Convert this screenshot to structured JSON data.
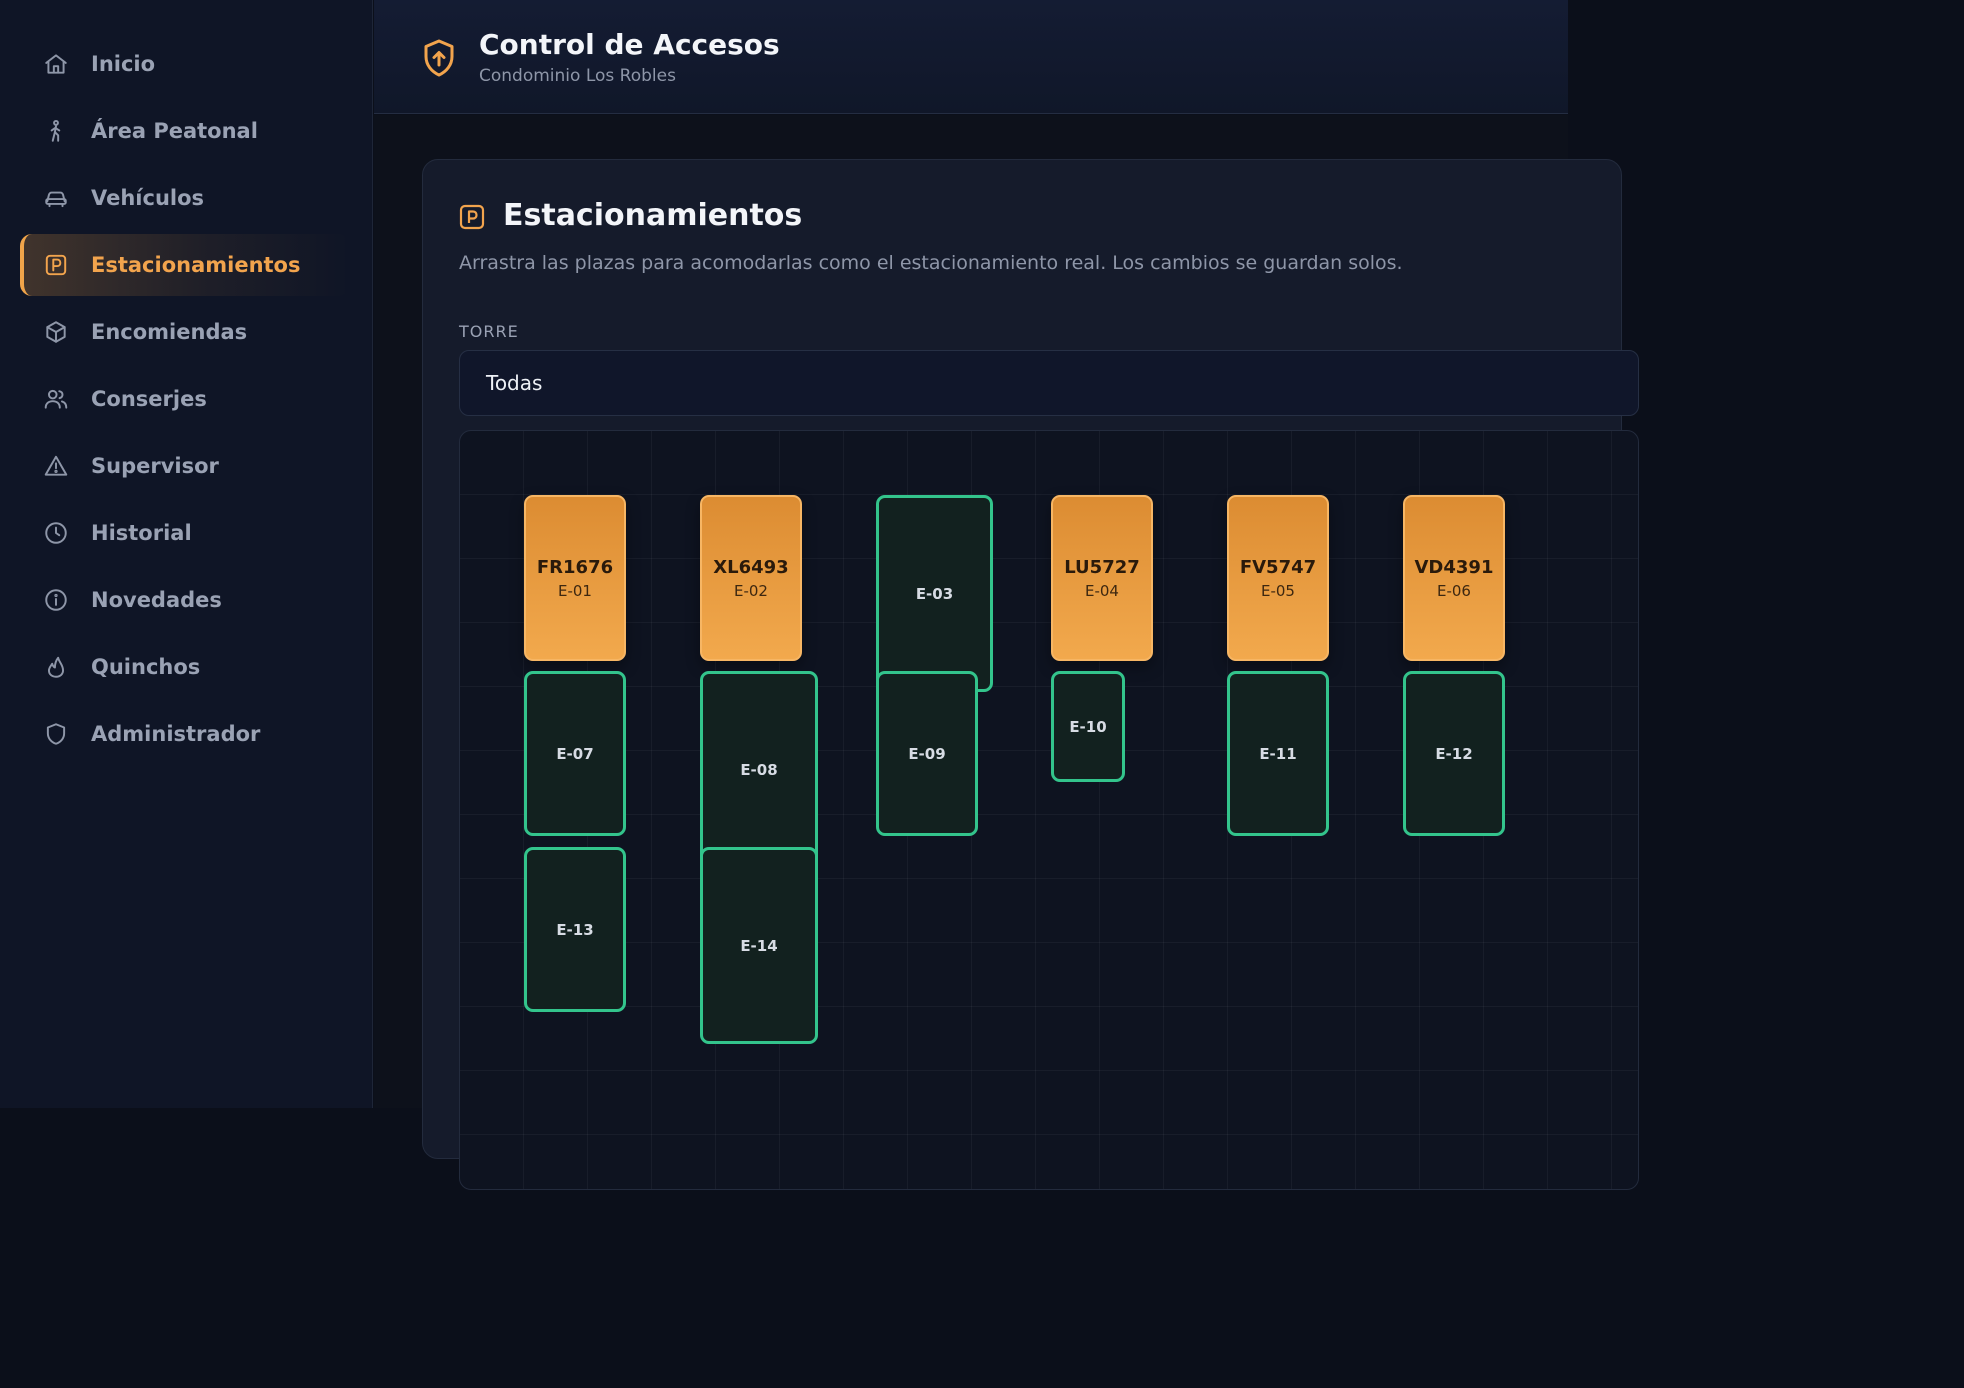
{
  "header": {
    "title": "Control de Accesos",
    "subtitle": "Condominio Los Robles",
    "logo_icon": "shield-arrow-icon"
  },
  "sidebar": {
    "items": [
      {
        "label": "Inicio",
        "icon": "home-icon"
      },
      {
        "label": "Área Peatonal",
        "icon": "walking-icon"
      },
      {
        "label": "Vehículos",
        "icon": "car-icon"
      },
      {
        "label": "Estacionamientos",
        "icon": "parking-icon",
        "active": true
      },
      {
        "label": "Encomiendas",
        "icon": "package-icon"
      },
      {
        "label": "Conserjes",
        "icon": "users-icon"
      },
      {
        "label": "Supervisor",
        "icon": "warning-icon"
      },
      {
        "label": "Historial",
        "icon": "clock-icon"
      },
      {
        "label": "Novedades",
        "icon": "info-icon"
      },
      {
        "label": "Quinchos",
        "icon": "flame-icon"
      },
      {
        "label": "Administrador",
        "icon": "shield-icon"
      }
    ]
  },
  "section": {
    "title": "Estacionamientos",
    "description": "Arrastra las plazas para acomodarlas como el estacionamiento real. Los cambios se guardan solos.",
    "tower_label": "TORRE",
    "tower_value": "Todas"
  },
  "spots": [
    {
      "code": "E-01",
      "status": "occupied",
      "plate": "FR1676"
    },
    {
      "code": "E-02",
      "status": "occupied",
      "plate": "XL6493"
    },
    {
      "code": "E-03",
      "status": "free"
    },
    {
      "code": "E-04",
      "status": "occupied",
      "plate": "LU5727"
    },
    {
      "code": "E-05",
      "status": "occupied",
      "plate": "FV5747"
    },
    {
      "code": "E-06",
      "status": "occupied",
      "plate": "VD4391"
    },
    {
      "code": "E-07",
      "status": "free"
    },
    {
      "code": "E-08",
      "status": "free"
    },
    {
      "code": "E-09",
      "status": "free"
    },
    {
      "code": "E-10",
      "status": "free"
    },
    {
      "code": "E-11",
      "status": "free"
    },
    {
      "code": "E-12",
      "status": "free"
    },
    {
      "code": "E-13",
      "status": "free"
    },
    {
      "code": "E-14",
      "status": "free"
    }
  ],
  "colors": {
    "accent": "#f2a44d",
    "free_border": "#33c48c",
    "background": "#0b0f1a"
  }
}
